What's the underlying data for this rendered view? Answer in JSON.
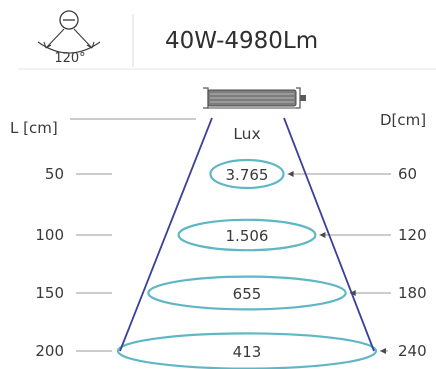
{
  "header": {
    "beam_angle_label": "120°",
    "spec_label": "40W-4980Lm"
  },
  "diagram": {
    "left_axis_label": "L [cm]",
    "right_axis_label": "D[cm]",
    "lux_label": "Lux",
    "rows": [
      {
        "distance": "50",
        "lux": "3.765",
        "diameter": "60"
      },
      {
        "distance": "100",
        "lux": "1.506",
        "diameter": "120"
      },
      {
        "distance": "150",
        "lux": "655",
        "diameter": "180"
      },
      {
        "distance": "200",
        "lux": "413",
        "diameter": "240"
      }
    ],
    "colors": {
      "cone": "#3a3f9a",
      "ellipse": "#5fb7c5",
      "guide": "#9a9a9a",
      "text": "#3a3a3a"
    }
  }
}
